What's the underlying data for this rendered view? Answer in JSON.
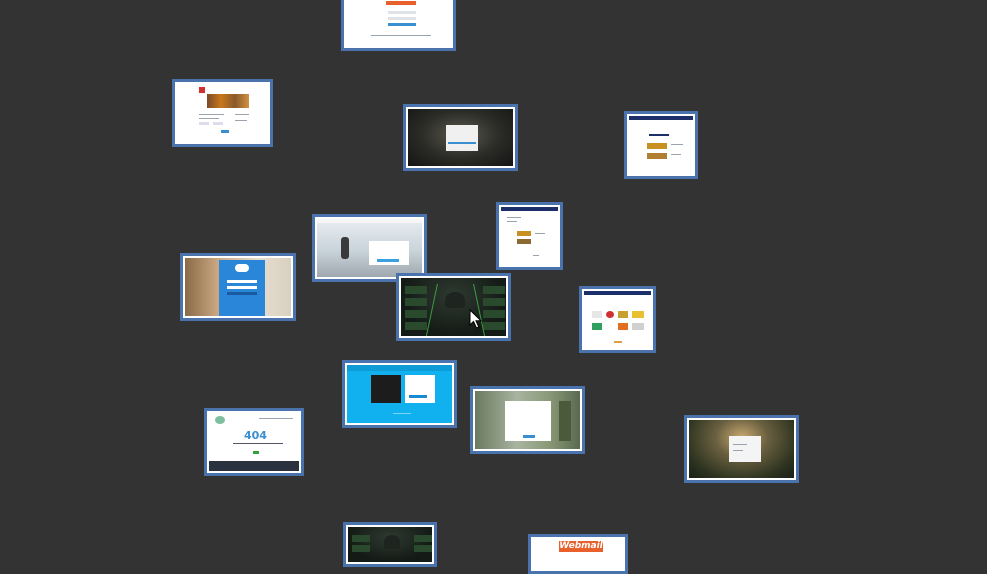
{
  "gallery": {
    "background": "#333333",
    "frame_color": "#4a72ad",
    "thumbnails": [
      {
        "id": "t1",
        "kind": "webmail-login-top"
      },
      {
        "id": "t2",
        "kind": "webmail-login-banner"
      },
      {
        "id": "t3",
        "kind": "dark-dialog"
      },
      {
        "id": "t4",
        "kind": "blue-header-page"
      },
      {
        "id": "t5",
        "kind": "runner-login"
      },
      {
        "id": "t6",
        "kind": "blue-header-list"
      },
      {
        "id": "t7",
        "kind": "cloud-login"
      },
      {
        "id": "t8",
        "kind": "dark-green-grid"
      },
      {
        "id": "t9",
        "kind": "logos-grid"
      },
      {
        "id": "t10",
        "kind": "cyan-page"
      },
      {
        "id": "t11",
        "kind": "not-found"
      },
      {
        "id": "t12",
        "kind": "forest-login"
      },
      {
        "id": "t13",
        "kind": "sunset-dialog"
      },
      {
        "id": "t14",
        "kind": "dark-green-bottom"
      },
      {
        "id": "t15",
        "kind": "webmail-bottom"
      }
    ]
  },
  "not_found": {
    "code": "404"
  },
  "webmail": {
    "logo": "Webmail"
  },
  "cursor": {
    "icon": "mouse-pointer-icon"
  }
}
